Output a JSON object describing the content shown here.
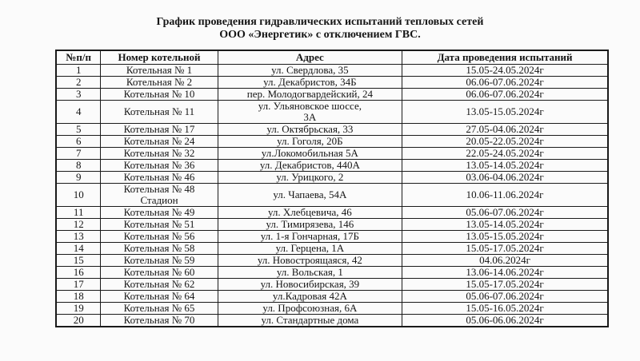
{
  "document": {
    "title_line1": "График проведения гидравлических испытаний тепловых сетей",
    "title_line2": "ООО «Энергетик» с отключением ГВС."
  },
  "table": {
    "headers": [
      "№п/п",
      "Номер котельной",
      "Адрес",
      "Дата проведения испытаний"
    ],
    "rows": [
      [
        "1",
        "Котельная № 1",
        "ул. Свердлова, 35",
        "15.05-24.05.2024г"
      ],
      [
        "2",
        "Котельная № 2",
        "ул. Декабристов, 34Б",
        "06.06-07.06.2024г"
      ],
      [
        "3",
        "Котельная № 10",
        "пер. Молодогвардейский, 24",
        "06.06-07.06.2024г"
      ],
      [
        "4",
        "Котельная № 11",
        "ул. Ульяновское шоссе,\n3А",
        "13.05-15.05.2024г"
      ],
      [
        "5",
        "Котельная № 17",
        "ул. Октябрьская, 33",
        "27.05-04.06.2024г"
      ],
      [
        "6",
        "Котельная № 24",
        "ул. Гоголя, 20Б",
        "20.05-22.05.2024г"
      ],
      [
        "7",
        "Котельная № 32",
        "ул.Локомобильная 5А",
        "22.05-24.05.2024г"
      ],
      [
        "8",
        "Котельная № 36",
        "ул. Декабристов, 440А",
        "13.05-14.05.2024г"
      ],
      [
        "9",
        "Котельная № 46",
        "ул. Урицкого, 2",
        "03.06-04.06.2024г"
      ],
      [
        "10",
        "Котельная № 48\nСтадион",
        "ул. Чапаева, 54А",
        "10.06-11.06.2024г"
      ],
      [
        "11",
        "Котельная № 49",
        "ул. Хлебцевича, 46",
        "05.06-07.06.2024г"
      ],
      [
        "12",
        "Котельная № 51",
        "ул. Тимирязева, 146",
        "13.05-14.05.2024г"
      ],
      [
        "13",
        "Котельная № 56",
        "ул. 1-я Гончарная, 17Б",
        "13.05-15.05.2024г"
      ],
      [
        "14",
        "Котельная № 58",
        "ул. Герцена, 1А",
        "15.05-17.05.2024г"
      ],
      [
        "15",
        "Котельная № 59",
        "ул. Новостроящаяся, 42",
        "04.06.2024г"
      ],
      [
        "16",
        "Котельная № 60",
        "ул. Вольская, 1",
        "13.06-14.06.2024г"
      ],
      [
        "17",
        "Котельная № 62",
        "ул. Новосибирская, 39",
        "15.05-17.05.2024г"
      ],
      [
        "18",
        "Котельная № 64",
        "ул.Кадровая 42А",
        "05.06-07.06.2024г"
      ],
      [
        "19",
        "Котельная № 65",
        "ул. Профсоюзная, 6А",
        "15.05-16.05.2024г"
      ],
      [
        "20",
        "Котельная № 70",
        "ул. Стандартные дома",
        "05.06-06.06.2024г"
      ]
    ]
  }
}
